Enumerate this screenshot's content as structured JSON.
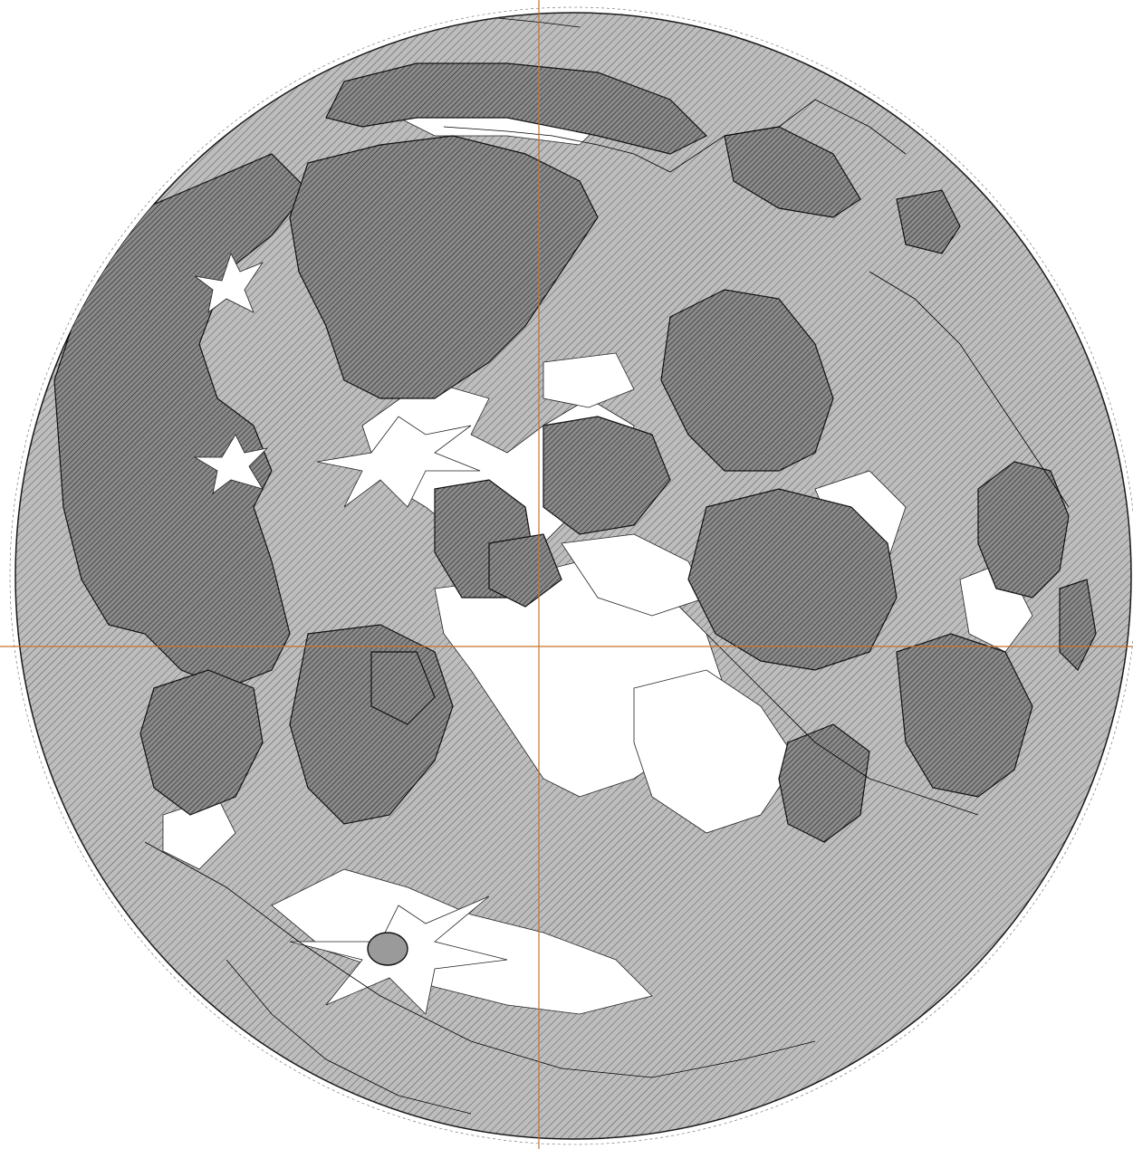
{
  "map": {
    "colors": {
      "background": "#ffffff",
      "highland_fill": "#b9b9b9",
      "mare_fill": "#8e8e8e",
      "bright_ray_fill": "#ffffff",
      "hatch_line": "#2b2b2b",
      "outline": "#1a1a1a",
      "crosshair": "#c8742c",
      "track_line": "#000000"
    },
    "features": [
      "limb-outline",
      "highland-regions",
      "mare-regions",
      "bright-ray-craters",
      "orange-crosshair",
      "survey-track-lines"
    ]
  }
}
